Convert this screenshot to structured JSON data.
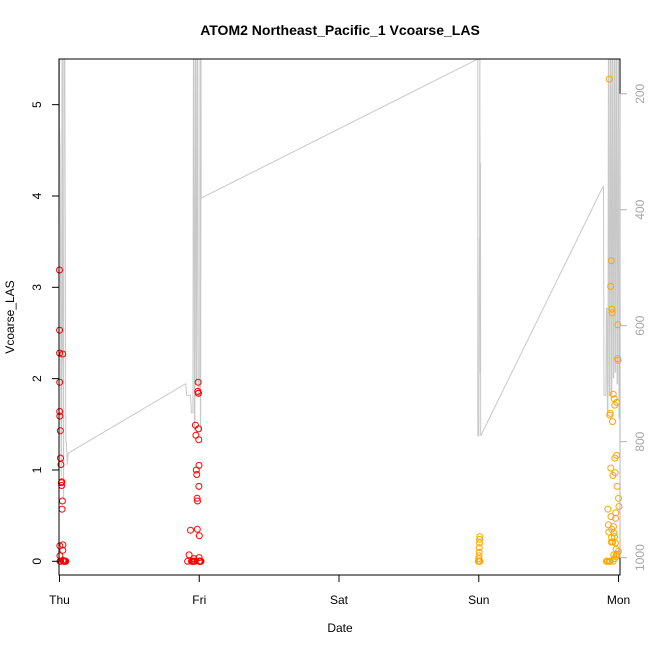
{
  "chart_data": {
    "type": "scatter",
    "title": "ATOM2 Northeast_Pacific_1 Vcoarse_LAS",
    "xlabel": "Date",
    "ylabel": "Vcoarse_LAS",
    "x_tick_labels": [
      "Thu",
      "Fri",
      "Sat",
      "Sun",
      "Mon"
    ],
    "xlim": [
      "2016-08-03T23:55",
      "2016-08-08T00:15"
    ],
    "ylim": [
      -0.15,
      5.5
    ],
    "y_ticks": [
      0,
      1,
      2,
      3,
      4,
      5
    ],
    "y2": {
      "label": "",
      "ticks": [
        200,
        400,
        600,
        800,
        1000
      ],
      "range_top_to_bottom": [
        140,
        1030
      ],
      "color": "#b3b3b3"
    },
    "marker_colors": [
      "#ff0000",
      "#ffa500"
    ],
    "series": [
      {
        "color": "#ff0000",
        "x": [
          "2016-08-04T00:00",
          "2016-08-04T00:01",
          "2016-08-04T00:01",
          "2016-08-04T00:02",
          "2016-08-04T00:02",
          "2016-08-04T00:03",
          "2016-08-04T00:03",
          "2016-08-04T00:04",
          "2016-08-04T00:08",
          "2016-08-04T00:10",
          "2016-08-04T00:15",
          "2016-08-04T00:20",
          "2016-08-04T00:23",
          "2016-08-04T00:25",
          "2016-08-04T00:27",
          "2016-08-04T00:30",
          "2016-08-04T00:33",
          "2016-08-04T00:34",
          "2016-08-04T00:35",
          "2016-08-04T00:36",
          "2016-08-04T00:45",
          "2016-08-04T00:05",
          "2016-08-04T00:12",
          "2016-08-04T00:40",
          "2016-08-04T00:50",
          "2016-08-04T00:55",
          "2016-08-04T01:00",
          "2016-08-04T01:05",
          "2016-08-04T22:00",
          "2016-08-04T22:15",
          "2016-08-04T22:30",
          "2016-08-04T22:45",
          "2016-08-04T22:55",
          "2016-08-04T23:05",
          "2016-08-04T23:10",
          "2016-08-04T23:15",
          "2016-08-04T23:20",
          "2016-08-04T23:25",
          "2016-08-04T23:30",
          "2016-08-04T23:35",
          "2016-08-04T23:38",
          "2016-08-04T23:40",
          "2016-08-04T23:42",
          "2016-08-04T23:45",
          "2016-08-04T23:48",
          "2016-08-04T23:50",
          "2016-08-04T23:52",
          "2016-08-04T23:53",
          "2016-08-04T23:55",
          "2016-08-04T23:56",
          "2016-08-04T23:57",
          "2016-08-04T23:58",
          "2016-08-05T00:00",
          "2016-08-05T00:01",
          "2016-08-05T00:02",
          "2016-08-05T00:03",
          "2016-08-05T00:05",
          "2016-08-05T00:08",
          "2016-08-05T00:10",
          "2016-08-05T00:12",
          "2016-08-05T00:15",
          "2016-08-04T23:00",
          "2016-08-04T22:40",
          "2016-08-05T00:18"
        ],
        "y": [
          3.19,
          2.53,
          2.28,
          1.96,
          1.64,
          1.59,
          0.17,
          0.06,
          1.43,
          1.13,
          1.06,
          0.86,
          0.83,
          0.87,
          0.57,
          0.66,
          2.27,
          0.12,
          0.18,
          0.01,
          0.0,
          0.0,
          0.0,
          0.0,
          0.0,
          0.0,
          0.0,
          0.0,
          0.0,
          0.07,
          0.34,
          0.0,
          0.0,
          0.03,
          0.0,
          0.0,
          1.49,
          1.38,
          1.0,
          0.95,
          0.69,
          0.35,
          0.66,
          1.86,
          1.96,
          1.84,
          1.84,
          1.45,
          1.33,
          0.82,
          1.05,
          0.04,
          0.28,
          0.0,
          0.0,
          0.0,
          0.0,
          0.0,
          0.0,
          0.0,
          0.0,
          0.0,
          0.0,
          0.0
        ]
      },
      {
        "color": "#ffa500",
        "x": [
          "2016-08-06T23:55",
          "2016-08-06T23:58",
          "2016-08-07T00:00",
          "2016-08-07T00:02",
          "2016-08-07T00:04",
          "2016-08-07T00:05",
          "2016-08-07T00:07",
          "2016-08-07T00:08",
          "2016-08-07T00:10",
          "2016-08-07T00:12",
          "2016-08-07T00:06",
          "2016-08-07T00:09",
          "2016-08-07T00:03",
          "2016-08-07T22:00",
          "2016-08-07T22:10",
          "2016-08-07T22:20",
          "2016-08-07T22:25",
          "2016-08-07T22:30",
          "2016-08-07T22:35",
          "2016-08-07T22:40",
          "2016-08-07T22:45",
          "2016-08-07T22:50",
          "2016-08-07T22:55",
          "2016-08-07T23:00",
          "2016-08-07T23:05",
          "2016-08-07T23:10",
          "2016-08-07T23:15",
          "2016-08-07T23:20",
          "2016-08-07T23:25",
          "2016-08-07T23:30",
          "2016-08-07T23:35",
          "2016-08-07T23:40",
          "2016-08-07T23:45",
          "2016-08-07T23:50",
          "2016-08-07T23:55",
          "2016-08-08T00:00",
          "2016-08-08T00:05",
          "2016-08-07T21:55",
          "2016-08-07T22:15",
          "2016-08-07T22:05",
          "2016-08-07T22:38",
          "2016-08-07T22:42",
          "2016-08-07T22:48",
          "2016-08-07T22:58",
          "2016-08-07T23:08",
          "2016-08-07T23:12",
          "2016-08-07T23:18",
          "2016-08-07T23:28",
          "2016-08-07T23:38",
          "2016-08-07T23:48",
          "2016-08-07T23:58",
          "2016-08-07T22:22",
          "2016-08-07T22:33",
          "2016-08-07T22:52",
          "2016-08-07T23:02",
          "2016-08-07T23:22",
          "2016-08-07T23:32",
          "2016-08-07T23:42",
          "2016-08-07T23:52",
          "2016-08-07T22:28",
          "2016-08-07T23:15",
          "2016-08-07T22:45",
          "2016-08-07T23:05",
          "2016-08-07T23:35"
        ],
        "y": [
          0.0,
          0.0,
          0.03,
          0.06,
          0.1,
          0.15,
          0.2,
          0.24,
          0.27,
          0.0,
          0.0,
          0.0,
          0.0,
          0.0,
          0.57,
          0.32,
          5.28,
          1.6,
          1.62,
          1.02,
          3.29,
          0.35,
          2.72,
          0.21,
          1.83,
          0.07,
          1.78,
          1.71,
          0.97,
          0.47,
          0.05,
          1.16,
          0.82,
          2.22,
          2.2,
          0.69,
          0.6,
          0.0,
          0.4,
          0.0,
          3.01,
          0.49,
          0.26,
          1.53,
          0.38,
          0.31,
          0.27,
          0.2,
          0.07,
          0.08,
          0.11,
          0.0,
          0.0,
          2.76,
          0.94,
          1.13,
          0.53,
          1.74,
          2.59,
          0.0,
          0.03,
          0.21,
          0.0,
          0.13
        ]
      }
    ],
    "depth_line": {
      "color": "#c8c8c8",
      "x": [
        "2016-08-04T00:00",
        "2016-08-04T00:00",
        "2016-08-04T00:02",
        "2016-08-04T00:05",
        "2016-08-04T00:10",
        "2016-08-04T00:14",
        "2016-08-04T00:18",
        "2016-08-04T00:22",
        "2016-08-04T00:26",
        "2016-08-04T00:30",
        "2016-08-04T00:34",
        "2016-08-04T00:38",
        "2016-08-04T00:42",
        "2016-08-04T00:45",
        "2016-08-04T00:55",
        "2016-08-04T01:05",
        "2016-08-04T01:10",
        "2016-08-04T01:20",
        "2016-08-04T01:30",
        "2016-08-04T21:40",
        "2016-08-04T21:40",
        "2016-08-04T21:50",
        "2016-08-04T22:30",
        "2016-08-04T22:40",
        "2016-08-04T22:50",
        "2016-08-04T22:55",
        "2016-08-04T23:00",
        "2016-08-04T23:05",
        "2016-08-04T23:10",
        "2016-08-04T23:15",
        "2016-08-04T23:20",
        "2016-08-04T23:25",
        "2016-08-04T23:30",
        "2016-08-04T23:35",
        "2016-08-04T23:40",
        "2016-08-04T23:45",
        "2016-08-04T23:50",
        "2016-08-05T00:00",
        "2016-08-05T00:05",
        "2016-08-05T00:08",
        "2016-08-05T00:10",
        "2016-08-05T00:12",
        "2016-08-05T00:15",
        "2016-08-05T00:18",
        "2016-08-05T00:20",
        "2016-08-06T23:50",
        "2016-08-06T23:50",
        "2016-08-06T23:55",
        "2016-08-07T00:00",
        "2016-08-07T00:05",
        "2016-08-07T00:08",
        "2016-08-07T00:10",
        "2016-08-07T00:12",
        "2016-08-07T00:15",
        "2016-08-07T00:16",
        "2016-08-07T00:17",
        "2016-08-07T00:18",
        "2016-08-07T00:20",
        "2016-08-07T21:20",
        "2016-08-07T21:25",
        "2016-08-07T21:30",
        "2016-08-07T21:35",
        "2016-08-07T21:45",
        "2016-08-07T21:50",
        "2016-08-07T21:55",
        "2016-08-07T22:00",
        "2016-08-07T22:05",
        "2016-08-07T22:10",
        "2016-08-07T22:15",
        "2016-08-07T22:20",
        "2016-08-07T22:25",
        "2016-08-07T22:30",
        "2016-08-07T22:35",
        "2016-08-07T22:40",
        "2016-08-07T22:45",
        "2016-08-07T22:50",
        "2016-08-07T22:55",
        "2016-08-07T23:00",
        "2016-08-07T23:05",
        "2016-08-07T23:10",
        "2016-08-07T23:15",
        "2016-08-07T23:20",
        "2016-08-07T23:25",
        "2016-08-07T23:30",
        "2016-08-07T23:35",
        "2016-08-07T23:40",
        "2016-08-07T23:45",
        "2016-08-07T23:50",
        "2016-08-07T23:55",
        "2016-08-08T00:00",
        "2016-08-08T00:05"
      ],
      "y": [
        140,
        260,
        260,
        300,
        450,
        680,
        860,
        750,
        140,
        140,
        650,
        700,
        900,
        140,
        140,
        800,
        800,
        840,
        820,
        700,
        700,
        720,
        720,
        750,
        750,
        750,
        140,
        140,
        780,
        780,
        140,
        140,
        700,
        700,
        140,
        140,
        720,
        720,
        720,
        140,
        140,
        780,
        780,
        140,
        380,
        140,
        790,
        790,
        790,
        450,
        450,
        140,
        140,
        680,
        680,
        320,
        320,
        790,
        360,
        360,
        720,
        720,
        720,
        720,
        570,
        570,
        750,
        750,
        140,
        140,
        720,
        720,
        140,
        140,
        720,
        720,
        140,
        140,
        690,
        690,
        140,
        140,
        680,
        680,
        140,
        140,
        700,
        700,
        140,
        140,
        760
      ]
    },
    "grid": false,
    "legend": "none"
  }
}
